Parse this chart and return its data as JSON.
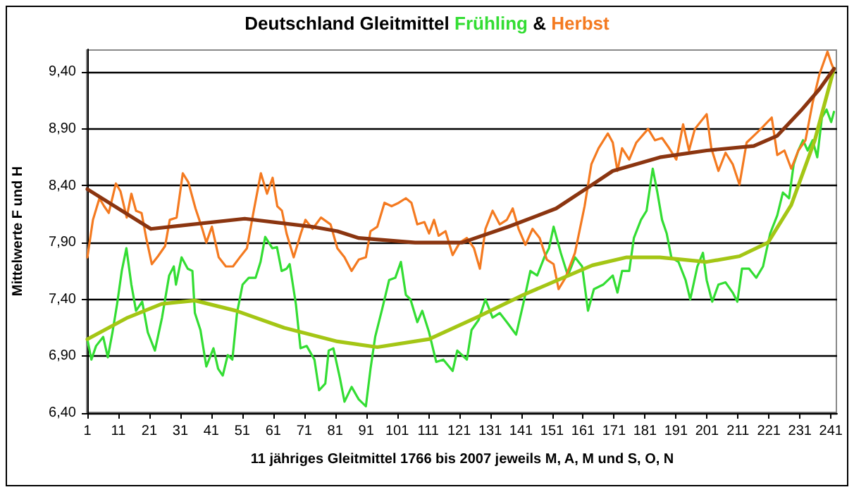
{
  "chart_data": {
    "type": "line",
    "title": "Deutschland Gleitmittel",
    "annotations": [
      "&"
    ],
    "xlabel": "11 jähriges Gleitmittel 1766 bis 2007 jeweils M, A, M und S, O, N",
    "ylabel": "Mittelwerte F und H",
    "xlim": [
      1,
      243
    ],
    "xticks": [
      1,
      11,
      21,
      31,
      41,
      51,
      61,
      71,
      81,
      91,
      101,
      111,
      121,
      131,
      141,
      151,
      161,
      171,
      181,
      191,
      201,
      211,
      221,
      231,
      241
    ],
    "ylim": [
      6.4,
      9.6
    ],
    "yticks": [
      {
        "value": 6.4,
        "label": "6,40"
      },
      {
        "value": 6.9,
        "label": "6,90"
      },
      {
        "value": 7.4,
        "label": "7,40"
      },
      {
        "value": 7.9,
        "label": "7,90"
      },
      {
        "value": 8.4,
        "label": "8,40"
      },
      {
        "value": 8.9,
        "label": "8,90"
      },
      {
        "value": 9.4,
        "label": "9,40"
      }
    ],
    "grid": "y",
    "legend": false,
    "marker": "none",
    "line_style": "solid",
    "series": [
      {
        "name": "Frühling",
        "color": "#33dd33",
        "x": [
          1,
          2.3,
          3.8,
          6.1,
          7.6,
          9.1,
          10.6,
          12.1,
          13.6,
          15.2,
          16.7,
          18.7,
          20.5,
          22.8,
          25.1,
          27.4,
          28.9,
          29.6,
          31.4,
          33.4,
          34.9,
          35.7,
          37.5,
          39.4,
          41.7,
          43.2,
          44.7,
          46.3,
          47.8,
          49.3,
          51.1,
          53.1,
          55.3,
          56.9,
          58.4,
          60.7,
          62.2,
          63.7,
          65.3,
          66.3,
          68.3,
          69.8,
          71.8,
          74.3,
          75.8,
          77.8,
          78.9,
          80.4,
          82.5,
          84,
          86.3,
          88.6,
          90.9,
          92.4,
          93.9,
          96.2,
          98.4,
          100.4,
          102.2,
          103.8,
          105.3,
          107.5,
          109.1,
          111.3,
          113.6,
          115.9,
          118.9,
          120.4,
          123.5,
          125,
          127.3,
          129.5,
          131.8,
          134.1,
          136.4,
          139.4,
          141.7,
          144,
          146.2,
          148.5,
          150,
          151.5,
          153.8,
          156.1,
          158.4,
          160.7,
          162.6,
          164.5,
          167.5,
          170.6,
          172.1,
          173.6,
          175.9,
          177.4,
          179.7,
          181.5,
          183.5,
          185,
          186.5,
          188,
          189.5,
          191.8,
          194.1,
          195.6,
          197.9,
          199.7,
          200.9,
          202.7,
          204.7,
          207,
          209.3,
          210.8,
          212.3,
          214.6,
          216.9,
          219.1,
          221.4,
          223.7,
          225.5,
          227.5,
          229,
          230.5,
          232,
          233.5,
          235.1,
          236.6,
          238.1,
          239.6,
          241.1,
          242
        ],
        "values": [
          7.05,
          6.87,
          6.99,
          7.07,
          6.89,
          7.11,
          7.36,
          7.65,
          7.85,
          7.53,
          7.3,
          7.38,
          7.11,
          6.95,
          7.24,
          7.61,
          7.69,
          7.53,
          7.77,
          7.67,
          7.65,
          7.28,
          7.13,
          6.81,
          6.97,
          6.79,
          6.73,
          6.91,
          6.87,
          7.28,
          7.53,
          7.59,
          7.59,
          7.73,
          7.95,
          7.85,
          7.86,
          7.65,
          7.67,
          7.71,
          7.36,
          6.97,
          6.99,
          6.87,
          6.6,
          6.66,
          6.95,
          6.97,
          6.71,
          6.5,
          6.63,
          6.52,
          6.46,
          6.79,
          7.07,
          7.32,
          7.57,
          7.59,
          7.73,
          7.44,
          7.4,
          7.2,
          7.3,
          7.11,
          6.85,
          6.87,
          6.77,
          6.95,
          6.87,
          7.13,
          7.22,
          7.4,
          7.24,
          7.28,
          7.2,
          7.09,
          7.36,
          7.65,
          7.61,
          7.77,
          7.85,
          8.04,
          7.81,
          7.61,
          7.77,
          7.69,
          7.3,
          7.49,
          7.53,
          7.61,
          7.46,
          7.65,
          7.65,
          7.94,
          8.1,
          8.18,
          8.55,
          8.34,
          8.1,
          7.98,
          7.77,
          7.73,
          7.57,
          7.4,
          7.69,
          7.81,
          7.57,
          7.38,
          7.53,
          7.55,
          7.46,
          7.38,
          7.67,
          7.67,
          7.59,
          7.69,
          7.98,
          8.14,
          8.34,
          8.29,
          8.59,
          8.71,
          8.8,
          8.71,
          8.8,
          8.65,
          9.0,
          9.07,
          8.96,
          9.05
        ]
      },
      {
        "name": "Herbst",
        "color": "#f47a20",
        "x": [
          1,
          2.8,
          4.9,
          6.4,
          7.9,
          10.2,
          11.7,
          13.7,
          15.2,
          16.7,
          18.5,
          20,
          21.8,
          23.8,
          26.1,
          27.6,
          29.8,
          31.8,
          33.6,
          35.9,
          38.1,
          39.4,
          41.2,
          43.4,
          45.7,
          48,
          50.2,
          52.5,
          54.7,
          57,
          59,
          60.8,
          62.3,
          63.8,
          65.3,
          67.6,
          69.9,
          71.4,
          73.7,
          76.4,
          79.5,
          81.7,
          84,
          86.3,
          88.6,
          90.9,
          92.4,
          94.6,
          96.9,
          99.2,
          101.5,
          103.8,
          105.6,
          107.5,
          109.8,
          111.3,
          112.9,
          114.4,
          116.6,
          118.9,
          121.2,
          123.5,
          125.8,
          127.7,
          129.5,
          131.8,
          134.1,
          136.4,
          138.3,
          140.2,
          142.4,
          144.7,
          147,
          149.3,
          151.5,
          153.1,
          155.3,
          158.4,
          161.5,
          163.7,
          166,
          169,
          170.6,
          172.1,
          173.6,
          175.9,
          178.2,
          182,
          184.2,
          186.5,
          188.8,
          191.1,
          193.3,
          195.2,
          197.1,
          200.9,
          202.4,
          204.7,
          207,
          209.3,
          211.5,
          213.8,
          216.1,
          218.4,
          221.9,
          223.7,
          226,
          228.2,
          230.5,
          232.8,
          235.1,
          237.3,
          239.9,
          241.1,
          242
        ],
        "values": [
          7.77,
          8.1,
          8.29,
          8.22,
          8.16,
          8.42,
          8.35,
          8.12,
          8.33,
          8.18,
          8.16,
          7.94,
          7.71,
          7.78,
          7.87,
          8.1,
          8.12,
          8.51,
          8.43,
          8.2,
          8.02,
          7.9,
          8.04,
          7.77,
          7.69,
          7.69,
          7.77,
          7.85,
          8.18,
          8.51,
          8.33,
          8.47,
          8.22,
          8.18,
          7.98,
          7.77,
          7.98,
          8.1,
          8.02,
          8.12,
          8.06,
          7.85,
          7.77,
          7.65,
          7.75,
          7.77,
          8.0,
          8.04,
          8.25,
          8.22,
          8.25,
          8.29,
          8.25,
          8.06,
          8.08,
          7.98,
          8.1,
          7.96,
          8.0,
          7.79,
          7.9,
          7.94,
          7.85,
          7.67,
          8.02,
          8.18,
          8.06,
          8.1,
          8.2,
          8.02,
          7.88,
          8.02,
          7.94,
          7.75,
          7.71,
          7.49,
          7.59,
          7.81,
          8.22,
          8.59,
          8.73,
          8.86,
          8.78,
          8.53,
          8.73,
          8.63,
          8.78,
          8.9,
          8.8,
          8.82,
          8.73,
          8.63,
          8.94,
          8.71,
          8.9,
          9.03,
          8.73,
          8.53,
          8.69,
          8.59,
          8.41,
          8.78,
          8.84,
          8.9,
          9.0,
          8.67,
          8.71,
          8.55,
          8.71,
          8.8,
          9.13,
          9.38,
          9.58,
          9.48,
          9.42
        ]
      },
      {
        "color": "#a4c615",
        "x": [
          1,
          14,
          25,
          35.7,
          49,
          64.5,
          81.7,
          94.6,
          111.3,
          126.5,
          141.7,
          164,
          175.1,
          185.8,
          200.9,
          211.5,
          220.7,
          228.2,
          235.8,
          242
        ],
        "values": [
          7.05,
          7.24,
          7.36,
          7.39,
          7.3,
          7.15,
          7.03,
          6.98,
          7.05,
          7.24,
          7.44,
          7.7,
          7.77,
          7.77,
          7.73,
          7.78,
          7.9,
          8.23,
          8.8,
          9.43
        ]
      },
      {
        "color": "#8b3510",
        "x": [
          1,
          21.5,
          51.8,
          73.4,
          81.7,
          88.6,
          106.8,
          122,
          137,
          152.3,
          164,
          170.6,
          185.8,
          200.9,
          216.1,
          223.7,
          231.3,
          237.3,
          242
        ],
        "values": [
          8.37,
          8.02,
          8.11,
          8.04,
          8.0,
          7.94,
          7.9,
          7.9,
          8.04,
          8.2,
          8.41,
          8.53,
          8.65,
          8.71,
          8.75,
          8.84,
          9.06,
          9.25,
          9.43
        ]
      }
    ]
  }
}
